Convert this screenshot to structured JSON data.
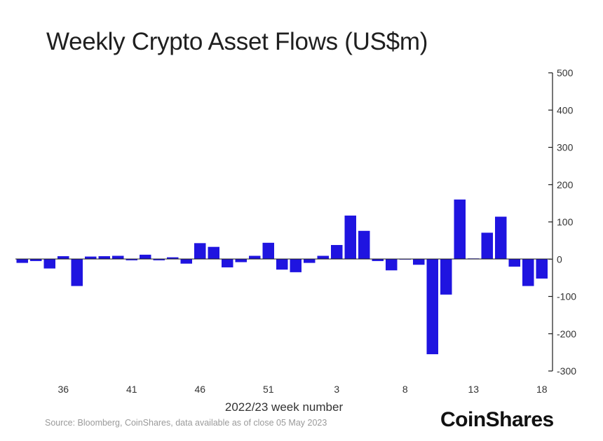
{
  "chart_data": {
    "type": "bar",
    "title": "Weekly Crypto Asset Flows (US$m)",
    "xlabel": "2022/23 week number",
    "ylabel": "",
    "ylim": [
      -300,
      500
    ],
    "yticks": [
      500,
      400,
      300,
      200,
      100,
      0,
      -100,
      -200,
      -300
    ],
    "ytick_labels": [
      "500",
      "400",
      "300",
      "200",
      "100",
      "0",
      "-100",
      "-200",
      "-300"
    ],
    "y_axis_side": "right",
    "grid": false,
    "xtick_labels": [
      {
        "label": "36",
        "week_index": 3
      },
      {
        "label": "41",
        "week_index": 8
      },
      {
        "label": "46",
        "week_index": 13
      },
      {
        "label": "51",
        "week_index": 18
      },
      {
        "label": "3",
        "week_index": 23
      },
      {
        "label": "8",
        "week_index": 28
      },
      {
        "label": "13",
        "week_index": 33
      },
      {
        "label": "18",
        "week_index": 38
      }
    ],
    "values": [
      -10,
      -5,
      -25,
      8,
      -72,
      7,
      8,
      9,
      -3,
      12,
      -3,
      5,
      -12,
      43,
      33,
      -22,
      -8,
      9,
      44,
      -28,
      -35,
      -10,
      9,
      38,
      117,
      76,
      -5,
      -30,
      0,
      -15,
      -255,
      -95,
      160,
      2,
      71,
      114,
      -20,
      -72,
      -52
    ],
    "bar_color": "#1f14e0"
  },
  "source": "Source: Bloomberg, CoinShares, data available as of close 05 May 2023",
  "brand": "CoinShares"
}
